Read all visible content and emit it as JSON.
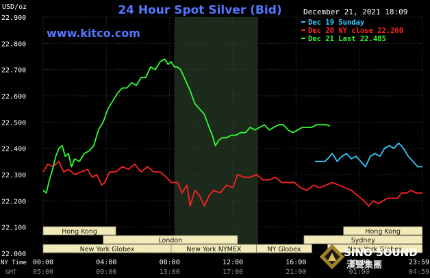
{
  "chart_data": {
    "type": "line",
    "title": "24 Hour Spot Silver (Bid)",
    "unit_label": "USD/oz",
    "website": "www.kitco.com",
    "timestamp": "December 21, 2021 18:09",
    "ylim": [
      22.0,
      22.9
    ],
    "y_ticks": [
      "22.900",
      "22.800",
      "22.700",
      "22.600",
      "22.500",
      "22.400",
      "22.300",
      "22.200",
      "22.100",
      "22.000"
    ],
    "xlim": [
      0,
      24
    ],
    "x_ticks": [
      "00:00",
      "04:00",
      "08:00",
      "12:00",
      "16:00",
      "20:00",
      "23:59"
    ],
    "gmt_ticks": [
      "05:00",
      "09:00",
      "13:00",
      "17:00",
      "21:00",
      "01:00",
      "04:59"
    ],
    "row_labels": {
      "ny_time": "NY Time",
      "gmt": "GMT"
    },
    "night_shade": [
      8.3,
      13.6
    ],
    "series": [
      {
        "name": "Dec 19 Sunday",
        "color": "#33ccff",
        "points": [
          [
            17.2,
            22.35
          ],
          [
            17.5,
            22.35
          ],
          [
            17.8,
            22.35
          ],
          [
            18.0,
            22.36
          ],
          [
            18.3,
            22.38
          ],
          [
            18.6,
            22.35
          ],
          [
            18.9,
            22.37
          ],
          [
            19.2,
            22.38
          ],
          [
            19.5,
            22.36
          ],
          [
            19.8,
            22.37
          ],
          [
            20.1,
            22.35
          ],
          [
            20.4,
            22.33
          ],
          [
            20.7,
            22.37
          ],
          [
            21.0,
            22.38
          ],
          [
            21.3,
            22.37
          ],
          [
            21.6,
            22.4
          ],
          [
            21.9,
            22.41
          ],
          [
            22.2,
            22.4
          ],
          [
            22.5,
            22.42
          ],
          [
            22.8,
            22.4
          ],
          [
            23.1,
            22.37
          ],
          [
            23.4,
            22.35
          ],
          [
            23.7,
            22.33
          ],
          [
            23.99,
            22.33
          ]
        ]
      },
      {
        "name": "Dec 20 NY close 22.260",
        "color": "#ff2222",
        "points": [
          [
            0.0,
            22.31
          ],
          [
            0.3,
            22.34
          ],
          [
            0.6,
            22.33
          ],
          [
            1.0,
            22.35
          ],
          [
            1.3,
            22.31
          ],
          [
            1.6,
            22.32
          ],
          [
            2.0,
            22.3
          ],
          [
            2.4,
            22.31
          ],
          [
            2.8,
            22.32
          ],
          [
            3.1,
            22.29
          ],
          [
            3.4,
            22.3
          ],
          [
            3.7,
            22.26
          ],
          [
            3.9,
            22.27
          ],
          [
            4.2,
            22.31
          ],
          [
            4.6,
            22.31
          ],
          [
            5.0,
            22.33
          ],
          [
            5.4,
            22.32
          ],
          [
            5.8,
            22.34
          ],
          [
            6.2,
            22.31
          ],
          [
            6.6,
            22.33
          ],
          [
            7.0,
            22.31
          ],
          [
            7.4,
            22.31
          ],
          [
            7.8,
            22.29
          ],
          [
            8.1,
            22.27
          ],
          [
            8.5,
            22.27
          ],
          [
            8.8,
            22.23
          ],
          [
            9.1,
            22.26
          ],
          [
            9.3,
            22.18
          ],
          [
            9.6,
            22.24
          ],
          [
            9.9,
            22.22
          ],
          [
            10.2,
            22.18
          ],
          [
            10.5,
            22.22
          ],
          [
            10.8,
            22.24
          ],
          [
            11.2,
            22.23
          ],
          [
            11.6,
            22.26
          ],
          [
            12.0,
            22.25
          ],
          [
            12.3,
            22.3
          ],
          [
            12.7,
            22.29
          ],
          [
            13.1,
            22.29
          ],
          [
            13.5,
            22.3
          ],
          [
            13.9,
            22.28
          ],
          [
            14.3,
            22.28
          ],
          [
            14.7,
            22.29
          ],
          [
            15.1,
            22.27
          ],
          [
            15.5,
            22.27
          ],
          [
            15.9,
            22.27
          ],
          [
            16.3,
            22.25
          ],
          [
            16.7,
            22.24
          ],
          [
            17.1,
            22.26
          ],
          [
            17.5,
            22.25
          ],
          [
            17.9,
            22.26
          ],
          [
            18.3,
            22.27
          ],
          [
            18.7,
            22.26
          ],
          [
            19.1,
            22.25
          ],
          [
            19.5,
            22.24
          ],
          [
            19.9,
            22.22
          ],
          [
            20.3,
            22.2
          ],
          [
            20.6,
            22.18
          ],
          [
            20.9,
            22.2
          ],
          [
            21.2,
            22.19
          ],
          [
            21.5,
            22.2
          ],
          [
            21.8,
            22.21
          ],
          [
            22.1,
            22.21
          ],
          [
            22.4,
            22.21
          ],
          [
            22.7,
            22.23
          ],
          [
            23.0,
            22.23
          ],
          [
            23.3,
            22.24
          ],
          [
            23.6,
            22.23
          ],
          [
            23.99,
            22.23
          ]
        ]
      },
      {
        "name": "Dec 21 Last 22.485",
        "color": "#33ff33",
        "points": [
          [
            0.0,
            22.24
          ],
          [
            0.2,
            22.23
          ],
          [
            0.4,
            22.28
          ],
          [
            0.6,
            22.32
          ],
          [
            0.8,
            22.37
          ],
          [
            1.0,
            22.4
          ],
          [
            1.2,
            22.41
          ],
          [
            1.4,
            22.37
          ],
          [
            1.6,
            22.38
          ],
          [
            1.8,
            22.33
          ],
          [
            2.0,
            22.36
          ],
          [
            2.3,
            22.35
          ],
          [
            2.6,
            22.38
          ],
          [
            2.9,
            22.39
          ],
          [
            3.2,
            22.41
          ],
          [
            3.5,
            22.47
          ],
          [
            3.8,
            22.5
          ],
          [
            4.1,
            22.55
          ],
          [
            4.4,
            22.58
          ],
          [
            4.7,
            22.61
          ],
          [
            5.0,
            22.63
          ],
          [
            5.3,
            22.63
          ],
          [
            5.6,
            22.65
          ],
          [
            5.9,
            22.64
          ],
          [
            6.2,
            22.67
          ],
          [
            6.5,
            22.67
          ],
          [
            6.8,
            22.71
          ],
          [
            7.1,
            22.7
          ],
          [
            7.4,
            22.73
          ],
          [
            7.7,
            22.74
          ],
          [
            7.9,
            22.72
          ],
          [
            8.1,
            22.73
          ],
          [
            8.3,
            22.71
          ],
          [
            8.5,
            22.71
          ],
          [
            8.7,
            22.7
          ],
          [
            9.0,
            22.66
          ],
          [
            9.3,
            22.62
          ],
          [
            9.6,
            22.57
          ],
          [
            9.9,
            22.55
          ],
          [
            10.2,
            22.53
          ],
          [
            10.5,
            22.48
          ],
          [
            10.7,
            22.45
          ],
          [
            10.9,
            22.41
          ],
          [
            11.1,
            22.43
          ],
          [
            11.3,
            22.44
          ],
          [
            11.6,
            22.44
          ],
          [
            11.9,
            22.45
          ],
          [
            12.2,
            22.45
          ],
          [
            12.5,
            22.46
          ],
          [
            12.8,
            22.46
          ],
          [
            13.1,
            22.48
          ],
          [
            13.4,
            22.47
          ],
          [
            13.7,
            22.48
          ],
          [
            14.0,
            22.49
          ],
          [
            14.3,
            22.47
          ],
          [
            14.6,
            22.48
          ],
          [
            14.9,
            22.49
          ],
          [
            15.2,
            22.49
          ],
          [
            15.5,
            22.47
          ],
          [
            15.8,
            22.46
          ],
          [
            16.1,
            22.47
          ],
          [
            16.4,
            22.48
          ],
          [
            16.7,
            22.48
          ],
          [
            17.0,
            22.48
          ],
          [
            17.3,
            22.49
          ],
          [
            17.6,
            22.49
          ],
          [
            17.9,
            22.49
          ],
          [
            18.15,
            22.485
          ]
        ]
      }
    ],
    "sessions": [
      {
        "label": "Hong Kong",
        "start": 0.0,
        "end": 4.6,
        "row": 1
      },
      {
        "label": "London",
        "start": 3.8,
        "end": 12.3,
        "row": 2
      },
      {
        "label": "New York Globex",
        "start": 0.0,
        "end": 8.1,
        "row": 3
      },
      {
        "label": "New York NYMEX",
        "start": 8.1,
        "end": 13.5,
        "row": 3
      },
      {
        "label": "NY Globex",
        "start": 13.5,
        "end": 17.0,
        "row": 3
      },
      {
        "label": "Hong Kong",
        "start": 19.0,
        "end": 23.99,
        "row": 1
      },
      {
        "label": "Sydney",
        "start": 16.5,
        "end": 23.99,
        "row": 2
      },
      {
        "label": "New York Globex",
        "start": 18.0,
        "end": 23.99,
        "row": 3
      }
    ],
    "watermark": {
      "brand": "SINO SOUND",
      "chinese": "漢聲集團"
    }
  }
}
